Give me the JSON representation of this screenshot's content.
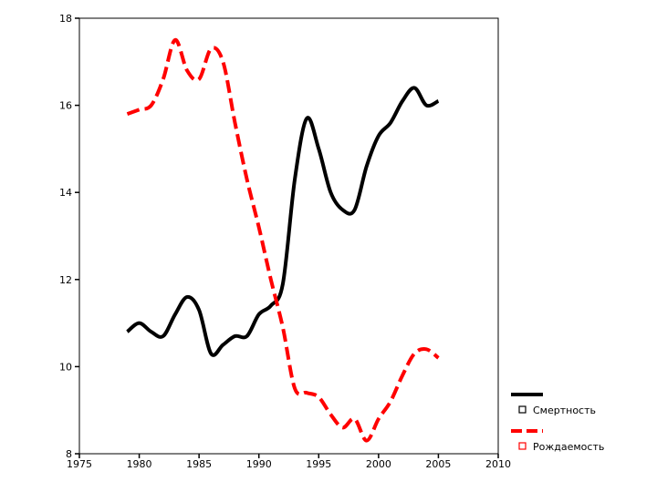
{
  "chart_data": {
    "type": "line",
    "title": "",
    "xlabel": "",
    "ylabel": "",
    "xlim": [
      1975,
      2010
    ],
    "ylim": [
      8,
      18
    ],
    "x_ticks": [
      1975,
      1980,
      1985,
      1990,
      1995,
      2000,
      2005,
      2010
    ],
    "y_ticks": [
      8,
      10,
      12,
      14,
      16,
      18
    ],
    "x_tick_labels": [
      "1975",
      "1980",
      "1985",
      "1990",
      "1995",
      "2000",
      "2005",
      "2010"
    ],
    "y_tick_labels": [
      "8",
      "10",
      "12",
      "14",
      "16",
      "18"
    ],
    "grid": false,
    "legend_position": "bottom-right, outside plot",
    "series": [
      {
        "name": "Смертность",
        "color": "#000000",
        "style": "solid",
        "x": [
          1979,
          1980,
          1981,
          1982,
          1983,
          1984,
          1985,
          1986,
          1987,
          1988,
          1989,
          1990,
          1991,
          1992,
          1993,
          1994,
          1995,
          1996,
          1997,
          1998,
          1999,
          2000,
          2001,
          2002,
          2003,
          2004,
          2005
        ],
        "values": [
          10.8,
          11.0,
          10.8,
          10.7,
          11.2,
          11.6,
          11.3,
          10.3,
          10.5,
          10.7,
          10.7,
          11.2,
          11.4,
          11.9,
          14.3,
          15.7,
          15.0,
          14.0,
          13.6,
          13.6,
          14.6,
          15.3,
          15.6,
          16.1,
          16.4,
          16.0,
          16.1
        ]
      },
      {
        "name": "Рождаемость",
        "color": "#ff0000",
        "style": "dashed",
        "x": [
          1979,
          1980,
          1981,
          1982,
          1983,
          1984,
          1985,
          1986,
          1987,
          1988,
          1989,
          1990,
          1991,
          1992,
          1993,
          1994,
          1995,
          1996,
          1997,
          1998,
          1999,
          2000,
          2001,
          2002,
          2003,
          2004,
          2005
        ],
        "values": [
          15.8,
          15.9,
          16.0,
          16.6,
          17.5,
          16.8,
          16.6,
          17.3,
          17.0,
          15.6,
          14.3,
          13.2,
          12.0,
          10.9,
          9.5,
          9.4,
          9.3,
          8.9,
          8.6,
          8.8,
          8.3,
          8.8,
          9.2,
          9.8,
          10.3,
          10.4,
          10.2
        ]
      }
    ]
  }
}
